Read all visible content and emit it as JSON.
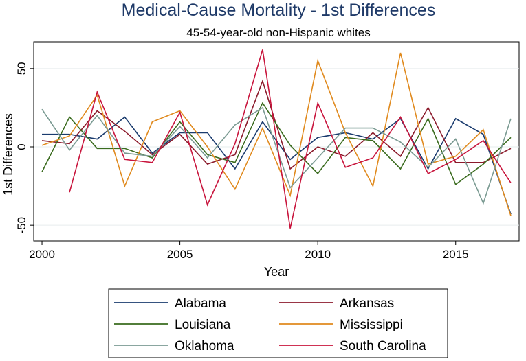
{
  "chart_data": {
    "type": "line",
    "title": "Medical-Cause Mortality - 1st Differences",
    "subtitle": "45-54-year-old non-Hispanic whites",
    "xlabel": "Year",
    "ylabel": "1st Differences",
    "xlim": [
      1999.7,
      2017.3
    ],
    "ylim": [
      -60,
      67
    ],
    "xticks": [
      2000,
      2005,
      2010,
      2015
    ],
    "yticks": [
      -50,
      0,
      50
    ],
    "grid": "horizontal",
    "legend_position": "bottom",
    "series": [
      {
        "name": "Alabama",
        "color": "#1a3b6e",
        "x": [
          2000,
          2001,
          2002,
          2003,
          2004,
          2005,
          2006,
          2007,
          2008,
          2009,
          2010,
          2011,
          2012,
          2013,
          2014,
          2015,
          2016,
          2017
        ],
        "y": [
          8,
          8,
          5,
          19,
          -4,
          9,
          9,
          -14,
          16,
          -8,
          6,
          9,
          5,
          18,
          -14,
          18,
          8,
          -43
        ]
      },
      {
        "name": "Arkansas",
        "color": "#8b1a2b",
        "x": [
          2000,
          2001,
          2002,
          2003,
          2004,
          2005,
          2006,
          2007,
          2008,
          2009,
          2010,
          2011,
          2012,
          2013,
          2014,
          2015,
          2016,
          2017
        ],
        "y": [
          4,
          2,
          23,
          10,
          -5,
          8,
          -11,
          -5,
          42,
          -14,
          0,
          -6,
          9,
          -6,
          25,
          -10,
          -10,
          -1
        ]
      },
      {
        "name": "Louisiana",
        "color": "#3a6b1e",
        "x": [
          2000,
          2001,
          2002,
          2003,
          2004,
          2005,
          2006,
          2007,
          2008,
          2009,
          2010,
          2011,
          2012,
          2013,
          2014,
          2015,
          2016,
          2017
        ],
        "y": [
          -16,
          19,
          -1,
          -1,
          -7,
          16,
          -5,
          -10,
          28,
          1,
          -17,
          6,
          4,
          -14,
          18,
          -24,
          -11,
          6
        ]
      },
      {
        "name": "Mississippi",
        "color": "#e08a1e",
        "x": [
          2000,
          2001,
          2002,
          2003,
          2004,
          2005,
          2006,
          2007,
          2008,
          2009,
          2010,
          2011,
          2012,
          2013,
          2014,
          2015,
          2016,
          2017
        ],
        "y": [
          1,
          7,
          33,
          -25,
          16,
          23,
          0,
          -27,
          12,
          -31,
          55,
          9,
          -25,
          60,
          -11,
          -6,
          11,
          -44
        ]
      },
      {
        "name": "Oklahoma",
        "color": "#7a9a92",
        "x": [
          2000,
          2001,
          2002,
          2003,
          2004,
          2005,
          2006,
          2007,
          2008,
          2009,
          2010,
          2011,
          2012,
          2013,
          2014,
          2015,
          2016,
          2017
        ],
        "y": [
          24,
          -2,
          20,
          -4,
          -6,
          13,
          -7,
          14,
          25,
          -26,
          -7,
          12,
          12,
          3,
          -13,
          5,
          -36,
          18
        ]
      },
      {
        "name": "South Carolina",
        "color": "#c8143c",
        "x": [
          2001,
          2002,
          2003,
          2004,
          2005,
          2006,
          2007,
          2008,
          2009,
          2010,
          2011,
          2012,
          2013,
          2014,
          2015,
          2016,
          2017
        ],
        "y": [
          -29,
          35,
          -8,
          -10,
          22,
          -37,
          2,
          62,
          -52,
          28,
          -13,
          -7,
          19,
          -17,
          -8,
          4,
          -23
        ]
      }
    ]
  }
}
